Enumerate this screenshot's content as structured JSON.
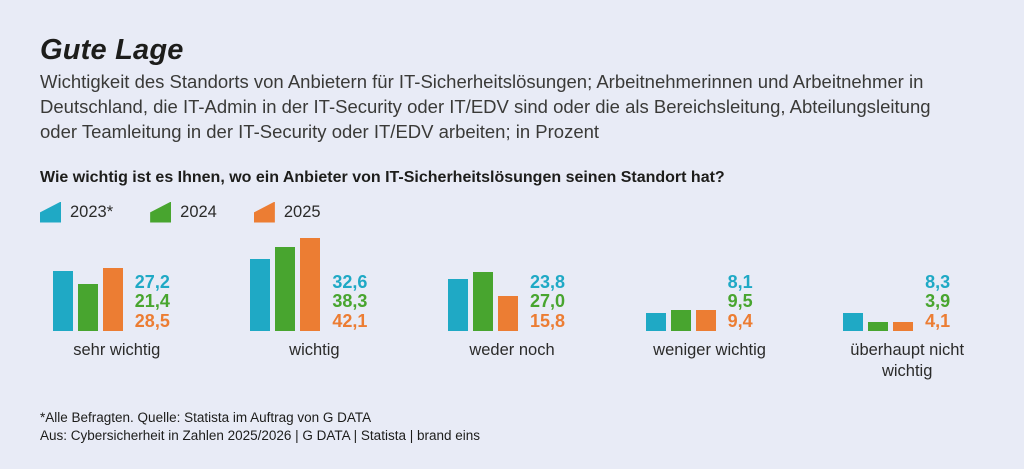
{
  "title": "Gute Lage",
  "subtitle_lines": [
    "Wichtigkeit des Standorts von Anbietern für IT-Sicherheitslösungen; Arbeitnehmerinnen und Arbeitnehmer in",
    "Deutschland, die IT-Admin in der IT-Security oder IT/EDV sind oder die als Bereichsleitung, Abteilungsleitung",
    "oder Teamleitung in der IT-Security oder IT/EDV arbeiten; in Prozent"
  ],
  "question": "Wie wichtig ist es Ihnen, wo ein Anbieter von IT-Sicherheitslösungen seinen Standort hat?",
  "legend": [
    {
      "label": "2023*",
      "color": "#1FA9C5"
    },
    {
      "label": "2024",
      "color": "#48A52F"
    },
    {
      "label": "2025",
      "color": "#EC7D33"
    }
  ],
  "chart_data": {
    "type": "bar",
    "unit": "Prozent",
    "title": "Gute Lage",
    "categories": [
      "sehr wichtig",
      "wichtig",
      "weder noch",
      "weniger wichtig",
      "überhaupt nicht wichtig"
    ],
    "series": [
      {
        "name": "2023*",
        "color": "#1FA9C5",
        "values": [
          27.2,
          32.6,
          23.8,
          8.1,
          8.3
        ]
      },
      {
        "name": "2024",
        "color": "#48A52F",
        "values": [
          21.4,
          38.3,
          27.0,
          9.5,
          3.9
        ]
      },
      {
        "name": "2025",
        "color": "#EC7D33",
        "values": [
          28.5,
          42.1,
          15.8,
          9.4,
          4.1
        ]
      }
    ],
    "ylim": [
      0,
      45
    ],
    "grid": false,
    "axes_shown": false,
    "legend_position": "top-left",
    "value_label_format": "decimal-comma"
  },
  "footnotes": [
    "*Alle Befragten. Quelle: Statista im Auftrag von G DATA",
    "Aus: Cybersicherheit in Zahlen 2025/2026 | G DATA | Statista | brand eins"
  ],
  "colors": {
    "background": "#E8EBF6",
    "title_text": "#1D1D1B",
    "body_text": "#3A3A38"
  }
}
